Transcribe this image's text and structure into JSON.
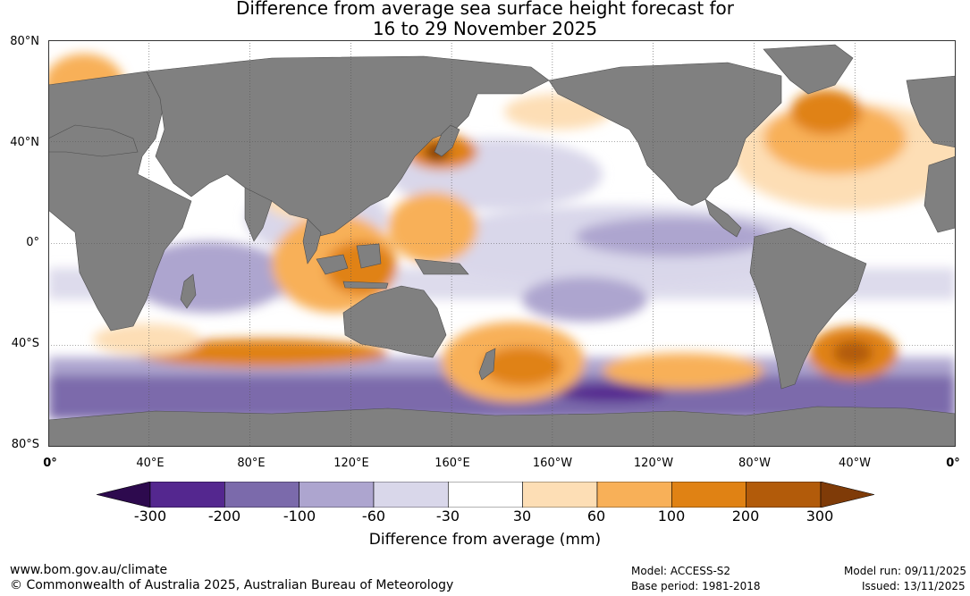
{
  "title": {
    "line1": "Difference from average sea surface height forecast for",
    "line2": "16 to 29 November 2025"
  },
  "map": {
    "lat_labels": [
      "80°N",
      "40°N",
      "0°",
      "40°S",
      "80°S"
    ],
    "lon_labels": [
      "0°",
      "40°E",
      "80°E",
      "120°E",
      "160°E",
      "160°W",
      "120°W",
      "80°W",
      "40°W",
      "0°"
    ],
    "colors": {
      "land": "#808080",
      "grid": "#555555"
    }
  },
  "colorbar": {
    "title": "Difference from average (mm)",
    "ticks": [
      "-300",
      "-200",
      "-100",
      "-60",
      "-30",
      "30",
      "60",
      "100",
      "200",
      "300"
    ],
    "colors": [
      "#2d0a4e",
      "#54278f",
      "#7b6aab",
      "#ada5cf",
      "#d9d7ea",
      "#ffffff",
      "#fddeb5",
      "#f8b058",
      "#e08214",
      "#b25b0a",
      "#7f3b08"
    ]
  },
  "footer": {
    "url": "www.bom.gov.au/climate",
    "copyright": "© Commonwealth of Australia 2025, Australian Bureau of Meteorology",
    "model": "Model: ACCESS-S2",
    "base_period": "Base period: 1981-2018",
    "model_run": "Model run: 09/11/2025",
    "issued": "Issued: 13/11/2025"
  }
}
